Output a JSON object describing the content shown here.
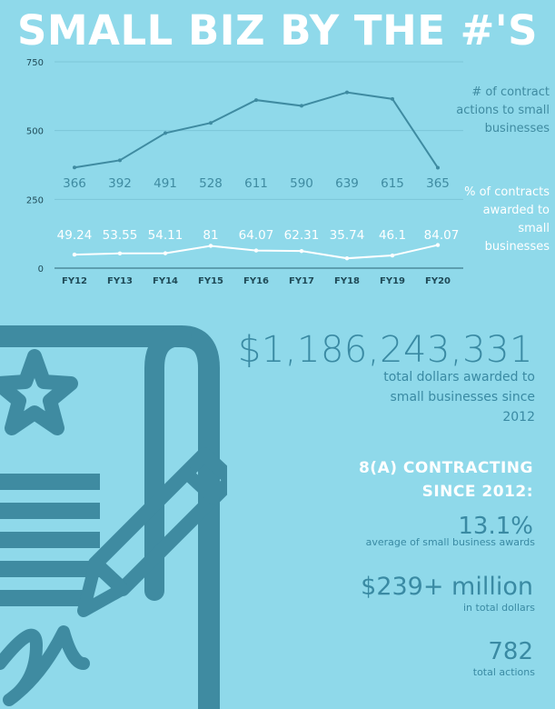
{
  "title": "SMALL BIZ BY THE #'S",
  "colors": {
    "background": "#8fd9ea",
    "primary_line": "#3f8ba1",
    "secondary_line": "#ffffff",
    "accent_text": "#3a8aa3"
  },
  "chart_data": {
    "type": "line",
    "categories": [
      "FY12",
      "FY13",
      "FY14",
      "FY15",
      "FY16",
      "FY17",
      "FY18",
      "FY19",
      "FY20"
    ],
    "ylim": [
      0,
      750
    ],
    "yticks": [
      "0",
      "250",
      "500",
      "750"
    ],
    "grid": true,
    "legend_position": "right",
    "series": [
      {
        "name": "# of contract actions to small businesses",
        "values": [
          366,
          392,
          491,
          528,
          611,
          590,
          639,
          615,
          365
        ],
        "labels": [
          "366",
          "392",
          "491",
          "528",
          "611",
          "590",
          "639",
          "615",
          "365"
        ]
      },
      {
        "name": "% of contracts awarded to small businesses",
        "values": [
          49.24,
          53.55,
          54.11,
          81,
          64.07,
          62.31,
          35.74,
          46.1,
          84.07
        ],
        "labels": [
          "49.24",
          "53.55",
          "54.11",
          "81",
          "64.07",
          "62.31",
          "35.74",
          "46.1",
          "84.07"
        ]
      }
    ]
  },
  "legend": {
    "primary": "# of contract actions to small businesses",
    "secondary": "% of contracts awarded to small businesses"
  },
  "stats": {
    "total_amount": "$1,186,243,331",
    "total_caption": "total dollars awarded to small businesses since 2012",
    "heading": "8(A) CONTRACTING SINCE 2012:",
    "stat1_value": "13.1%",
    "stat1_caption": "average of small business awards",
    "stat2_value": "$239+ million",
    "stat2_caption": "in total dollars",
    "stat3_value": "782",
    "stat3_caption": "total actions"
  },
  "illustration": {
    "icon": "contract-document-pen-icon"
  }
}
